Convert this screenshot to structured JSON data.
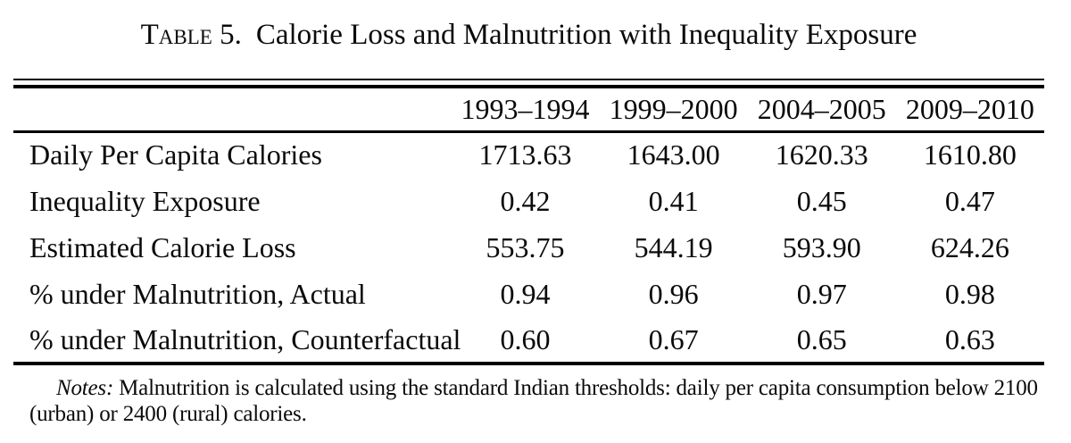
{
  "caption": {
    "label": "Table 5.",
    "title": "Calorie Loss and Malnutrition with Inequality Exposure"
  },
  "table": {
    "columns": [
      "1993–1994",
      "1999–2000",
      "2004–2005",
      "2009–2010"
    ],
    "rows": [
      {
        "label": "Daily Per Capita Calories",
        "values": [
          "1713.63",
          "1643.00",
          "1620.33",
          "1610.80"
        ]
      },
      {
        "label": "Inequality Exposure",
        "values": [
          "0.42",
          "0.41",
          "0.45",
          "0.47"
        ]
      },
      {
        "label": "Estimated Calorie Loss",
        "values": [
          "553.75",
          "544.19",
          "593.90",
          "624.26"
        ]
      },
      {
        "label": "% under Malnutrition, Actual",
        "values": [
          "0.94",
          "0.96",
          "0.97",
          "0.98"
        ]
      },
      {
        "label": "% under Malnutrition, Counterfactual",
        "values": [
          "0.60",
          "0.67",
          "0.65",
          "0.63"
        ]
      }
    ]
  },
  "notes": {
    "label": "Notes:",
    "text": "Malnutrition is calculated using the standard Indian thresholds: daily per capita consumption below 2100 (urban) or 2400 (rural) calories."
  },
  "colors": {
    "text": "#0a0a0a",
    "background": "#ffffff",
    "rule": "#000000"
  }
}
